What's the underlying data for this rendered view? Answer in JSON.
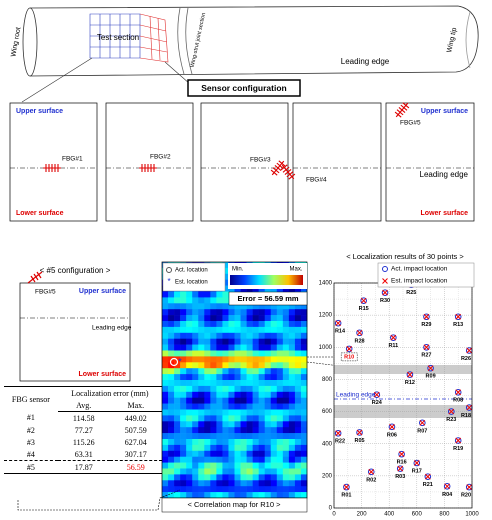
{
  "wing": {
    "root": "Wing root",
    "test_section": "Test section",
    "joint": "Wing-strut joint section",
    "leading_edge": "Leading edge",
    "tip": "Wing tip"
  },
  "sensor_configuration": {
    "title": "Sensor configuration",
    "panels": [
      {
        "upper": "Upper surface",
        "sensor": "FBG#1",
        "lower": "Lower surface"
      },
      {
        "sensor": "FBG#2"
      },
      {
        "sensor": "FBG#3"
      },
      {
        "sensor": "FBG#4"
      },
      {
        "sensor": "FBG#5",
        "upper": "Upper surface",
        "leading_edge": "Leading edge",
        "lower": "Lower surface"
      }
    ]
  },
  "config5": {
    "title": "< #5 configuration >",
    "sensor": "FBG#5",
    "upper": "Upper surface",
    "leading_edge": "Leading edge",
    "lower": "Lower surface"
  },
  "table": {
    "header": [
      "FBG sensor",
      "Localization error (mm)"
    ],
    "subheader": [
      "Avg.",
      "Max."
    ],
    "rows": [
      [
        "#1",
        "114.58",
        "449.02"
      ],
      [
        "#2",
        "77.27",
        "507.59"
      ],
      [
        "#3",
        "115.26",
        "627.04"
      ],
      [
        "#4",
        "63.31",
        "307.17"
      ],
      [
        "#5",
        "17.87",
        "56.59"
      ]
    ]
  },
  "correlation_map": {
    "legend": [
      "Act. location",
      "Est. location"
    ],
    "min": "Min.",
    "max": "Max.",
    "error": "Error = 56.59 mm",
    "caption": "< Correlation map for R10 >"
  },
  "localization": {
    "title": "< Localization results of 30 points >",
    "legend": [
      "Act. impact location",
      "Est. impact location"
    ],
    "leading_edge": "Leading edge",
    "xlim": [
      0,
      1000
    ],
    "ylim": [
      0,
      1400
    ],
    "xticks": [
      0,
      200,
      400,
      600,
      800,
      1000
    ],
    "yticks": [
      0,
      200,
      400,
      600,
      800,
      1000,
      1200,
      1400
    ],
    "points": [
      {
        "label": "R01",
        "x": 90,
        "y": 130
      },
      {
        "label": "R02",
        "x": 270,
        "y": 225
      },
      {
        "label": "R03",
        "x": 480,
        "y": 245
      },
      {
        "label": "R04",
        "x": 820,
        "y": 135
      },
      {
        "label": "R05",
        "x": 185,
        "y": 470
      },
      {
        "label": "R06",
        "x": 420,
        "y": 505
      },
      {
        "label": "R07",
        "x": 640,
        "y": 530
      },
      {
        "label": "R08",
        "x": 900,
        "y": 720
      },
      {
        "label": "R09",
        "x": 700,
        "y": 870
      },
      {
        "label": "R10",
        "x": 110,
        "y": 990
      },
      {
        "label": "R11",
        "x": 430,
        "y": 1060
      },
      {
        "label": "R12",
        "x": 550,
        "y": 830
      },
      {
        "label": "R13",
        "x": 900,
        "y": 1190
      },
      {
        "label": "R14",
        "x": 30,
        "y": 1150
      },
      {
        "label": "R15",
        "x": 215,
        "y": 1290
      },
      {
        "label": "R16",
        "x": 490,
        "y": 335
      },
      {
        "label": "R17",
        "x": 600,
        "y": 280
      },
      {
        "label": "R18",
        "x": 980,
        "y": 625
      },
      {
        "label": "R19",
        "x": 900,
        "y": 420
      },
      {
        "label": "R20",
        "x": 980,
        "y": 130
      },
      {
        "label": "R21",
        "x": 680,
        "y": 195
      },
      {
        "label": "R22",
        "x": 30,
        "y": 465
      },
      {
        "label": "R23",
        "x": 850,
        "y": 600
      },
      {
        "label": "R24",
        "x": 310,
        "y": 705
      },
      {
        "label": "R25",
        "x": 560,
        "y": 1390
      },
      {
        "label": "R26",
        "x": 980,
        "y": 980
      },
      {
        "label": "R27",
        "x": 670,
        "y": 1000
      },
      {
        "label": "R28",
        "x": 185,
        "y": 1090
      },
      {
        "label": "R29",
        "x": 670,
        "y": 1190
      },
      {
        "label": "R30",
        "x": 370,
        "y": 1340
      }
    ]
  }
}
